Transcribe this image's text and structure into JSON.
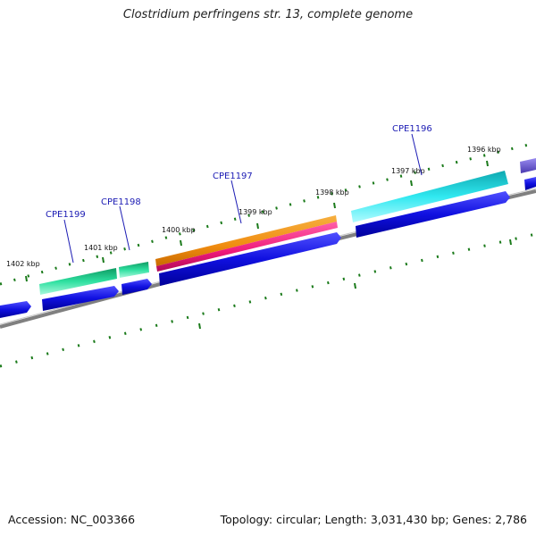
{
  "title": "Clostridium perfringens str. 13, complete genome",
  "footer": {
    "accession": "Accession: NC_003366",
    "summary": "Topology: circular; Length: 3,031,430 bp; Genes: 2,786"
  },
  "ticks": [
    {
      "label": "1402 kbp"
    },
    {
      "label": "1401 kbp"
    },
    {
      "label": "1400 kbp"
    },
    {
      "label": "1399 kbp"
    },
    {
      "label": "1398 kbp"
    },
    {
      "label": "1397 kbp"
    },
    {
      "label": "1396 kbp"
    }
  ],
  "genes": [
    {
      "label": "CPE1199"
    },
    {
      "label": "CPE1198"
    },
    {
      "label": "CPE1197"
    },
    {
      "label": "CPE1196"
    }
  ],
  "colors": {
    "backbone": "#808080",
    "cds_strand": "#1010e0",
    "tick": "#1a7a1a",
    "green_feature": "#22c38a",
    "orange_feature": "#f08c10",
    "pink_feature": "#ee1a7a",
    "cyan_feature": "#18d8dc",
    "purple_feature": "#6a5acd",
    "gene_label": "#1c1cb4"
  }
}
